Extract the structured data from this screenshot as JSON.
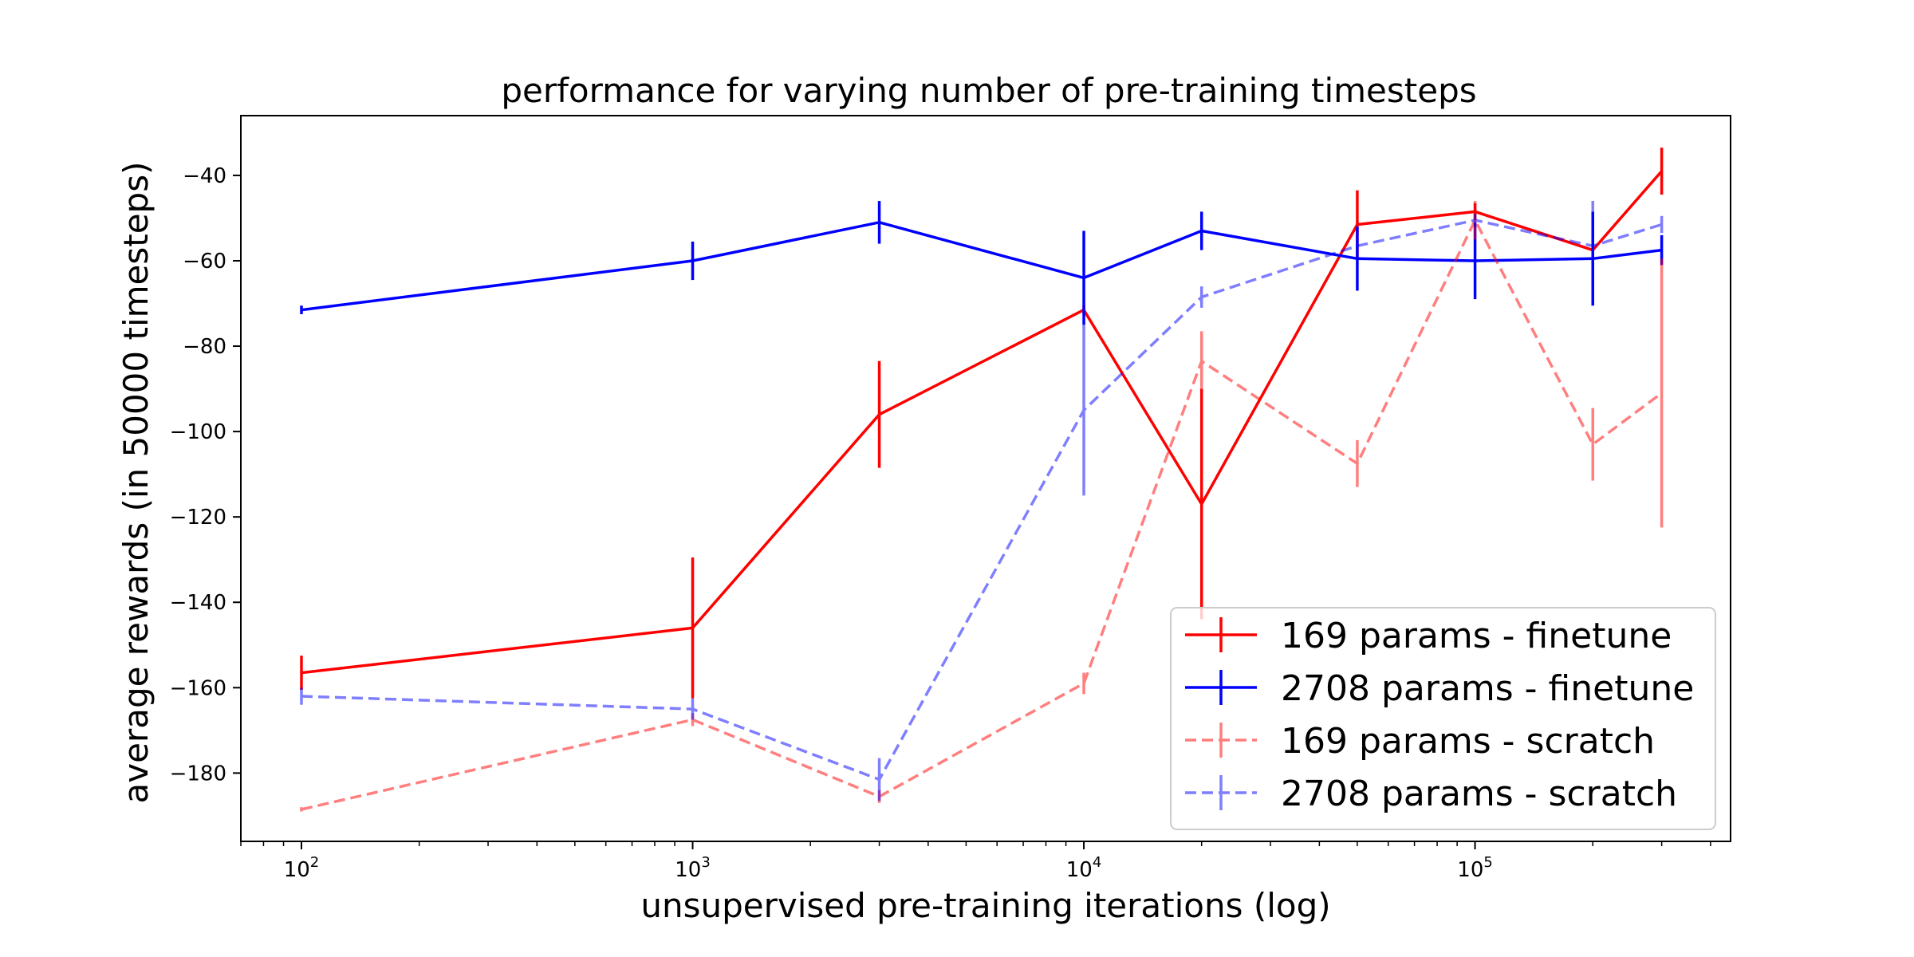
{
  "chart_data": {
    "type": "line",
    "title": "performance for varying number of pre-training timesteps",
    "xlabel": "unsupervised pre-training iterations (log)",
    "ylabel": "average rewards (in 50000 timesteps)",
    "xscale": "log",
    "xlim": [
      70,
      450000
    ],
    "ylim": [
      -196,
      -26
    ],
    "x_ticks": [
      {
        "value": 100,
        "base": "10",
        "exp": "2"
      },
      {
        "value": 1000,
        "base": "10",
        "exp": "3"
      },
      {
        "value": 10000,
        "base": "10",
        "exp": "4"
      },
      {
        "value": 100000,
        "base": "10",
        "exp": "5"
      }
    ],
    "y_ticks": [
      {
        "value": -40,
        "label": "−40"
      },
      {
        "value": -60,
        "label": "−60"
      },
      {
        "value": -80,
        "label": "−80"
      },
      {
        "value": -100,
        "label": "−100"
      },
      {
        "value": -120,
        "label": "−120"
      },
      {
        "value": -140,
        "label": "−140"
      },
      {
        "value": -160,
        "label": "−160"
      },
      {
        "value": -180,
        "label": "−180"
      }
    ],
    "x": [
      100,
      1000,
      3000,
      10000,
      20000,
      50000,
      100000,
      200000,
      300000
    ],
    "grid": false,
    "legend_position": "bottom-right",
    "series": [
      {
        "name": "169 params - finetune",
        "color": "#ff0000",
        "opacity": 1,
        "dashed": false,
        "values": [
          -156.5,
          -146,
          -96,
          -71.5,
          -117,
          -51.5,
          -48.5,
          -57.5,
          -39
        ],
        "errors": [
          4,
          16.5,
          12.5,
          1,
          27,
          8,
          2,
          1,
          5.5
        ]
      },
      {
        "name": "2708 params - finetune",
        "color": "#0000ff",
        "opacity": 1,
        "dashed": false,
        "values": [
          -71.5,
          -60,
          -51,
          -64,
          -53,
          -59.5,
          -60,
          -59.5,
          -57.5
        ],
        "errors": [
          1,
          4.5,
          5,
          11,
          4.5,
          7.5,
          9,
          11,
          3.5
        ]
      },
      {
        "name": "169 params - scratch",
        "color": "#ff0000",
        "opacity": 0.5,
        "dashed": false,
        "values": [
          -188.5,
          -167.5,
          -185.5,
          -159,
          -83.5,
          -107.5,
          -50.5,
          -103,
          -91
        ],
        "errors": [
          0.5,
          1.5,
          1.5,
          2.5,
          7,
          5.5,
          4.5,
          8.5,
          31.5
        ]
      },
      {
        "name": "2708 params - scratch",
        "color": "#0000ff",
        "opacity": 0.5,
        "dashed": true,
        "values": [
          -162,
          -165,
          -181.5,
          -95,
          -68.5,
          -56.5,
          -50.5,
          -56.5,
          -51.5
        ],
        "errors": [
          2,
          2.5,
          5,
          20,
          2.5,
          0.5,
          1.5,
          10.5,
          2
        ]
      }
    ]
  }
}
